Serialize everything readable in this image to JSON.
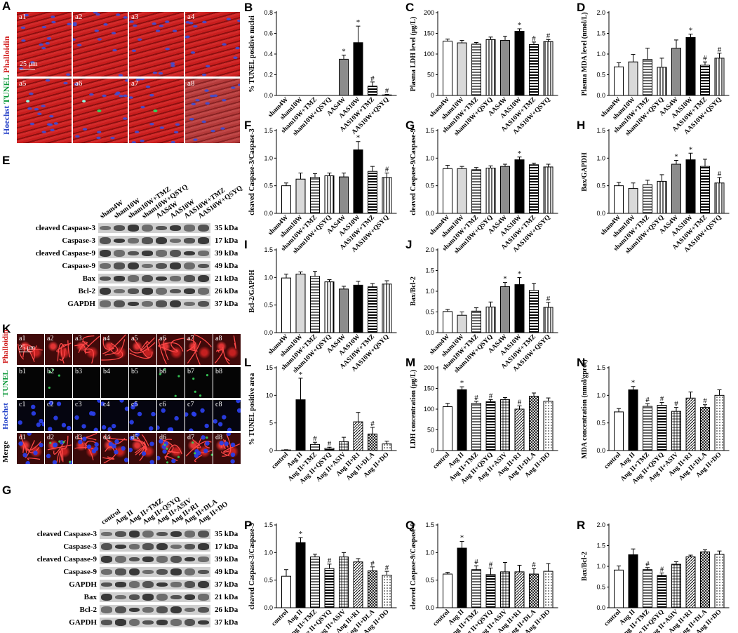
{
  "panel_letters": {
    "A": "A",
    "B": "B",
    "C": "C",
    "D": "D",
    "E": "E",
    "F": "F",
    "G": "G",
    "H": "H",
    "I": "I",
    "J": "J",
    "K": "K",
    "L": "L",
    "M": "M",
    "N": "N",
    "P": "P",
    "Q": "Q",
    "R": "R"
  },
  "micrograph_A": {
    "stain_left": {
      "hoechst": "Hoechst",
      "tunel": "TUNEL",
      "phalloidin": "Phalloidin"
    },
    "scale_bar": "25 μm",
    "tiles": [
      "a1",
      "a2",
      "a3",
      "a4",
      "a5",
      "a6",
      "a7",
      "a8"
    ]
  },
  "micrograph_K": {
    "scale_bar": "25 μm",
    "rows": [
      {
        "label": "TUNEL Phalloidin",
        "parts": [
          {
            "t": "Phalloidin",
            "c": "#d11d1d"
          }
        ],
        "tiles": [
          "a1",
          "a2",
          "a3",
          "a4",
          "a5",
          "a6",
          "a7",
          "a8"
        ]
      },
      {
        "label": "TUNEL",
        "parts": [
          {
            "t": "TUNEL",
            "c": "#0d9a3a"
          }
        ],
        "tiles": [
          "b1",
          "b2",
          "b3",
          "b4",
          "b5",
          "b6",
          "b7",
          "b8"
        ]
      },
      {
        "label": "Hoechst",
        "parts": [
          {
            "t": "Hoechst",
            "c": "#2040c8"
          }
        ],
        "tiles": [
          "c1",
          "c2",
          "c3",
          "c4",
          "c5",
          "c6",
          "c7",
          "c8"
        ]
      },
      {
        "label": "Merge",
        "parts": [
          {
            "t": "Merge",
            "c": "#000000"
          }
        ],
        "tiles": [
          "d1",
          "d2",
          "d3",
          "d4",
          "d5",
          "d6",
          "d7",
          "d8"
        ]
      }
    ]
  },
  "blot_E": {
    "lanes": [
      "sham4W",
      "sham10W",
      "sham10W+TMZ",
      "sham10W+QSYQ",
      "AAS4W",
      "AAS10W",
      "AAS10W+TMZ",
      "AAS10W+QSYQ"
    ],
    "rows": [
      {
        "name": "cleaved Caspase-3",
        "kda": "35 kDa"
      },
      {
        "name": "Caspase-3",
        "kda": "17 kDa"
      },
      {
        "name": "cleaved Caspase-9",
        "kda": "39 kDa"
      },
      {
        "name": "Caspase-9",
        "kda": "49 kDa"
      },
      {
        "name": "Bax",
        "kda": "21 kDa"
      },
      {
        "name": "Bcl-2",
        "kda": "26 kDa"
      },
      {
        "name": "GAPDH",
        "kda": "37 kDa"
      }
    ]
  },
  "blot_G": {
    "lanes": [
      "control",
      "Ang II",
      "Ang II+TMZ",
      "Ang II+QSYQ",
      "Ang II+ASIV",
      "Ang II+R1",
      "Ang II+DLA",
      "Ang II+DO"
    ],
    "rows": [
      {
        "name": "cleaved Caspase-3",
        "kda": "35 kDa"
      },
      {
        "name": "Caspase-3",
        "kda": "17 kDa"
      },
      {
        "name": "cleaved Caspase-9",
        "kda": "39 kDa"
      },
      {
        "name": "Caspase-9",
        "kda": "49 kDa"
      },
      {
        "name": "GAPDH",
        "kda": "37 kDa"
      },
      {
        "name": "Bax",
        "kda": "21 kDa"
      },
      {
        "name": "Bcl-2",
        "kda": "26 kDa"
      },
      {
        "name": "GAPDH",
        "kda": "37 kDa"
      }
    ]
  },
  "colors": {
    "black": "#000000",
    "dark_gray": "#7f7f7f",
    "light_gray": "#d9d9d9",
    "white": "#ffffff"
  },
  "chart_data": [
    {
      "id": "B",
      "type": "bar",
      "ylabel": "% TUNEL  positive nuclei",
      "ylim": [
        0,
        0.8
      ],
      "yticks": [
        0.0,
        0.2,
        0.4,
        0.6,
        0.8
      ],
      "categories": [
        "sham4W",
        "sham10W",
        "sham10W+TMZ",
        "sham10W+QSYQ",
        "AAS4W",
        "AAS10W",
        "AAS10W+TMZ",
        "AAS10W+QSYQ"
      ],
      "values": [
        0,
        0,
        0,
        0,
        0.35,
        0.51,
        0.09,
        0.005
      ],
      "errors": [
        0,
        0,
        0,
        0,
        0.04,
        0.16,
        0.04,
        0.005
      ],
      "marks": [
        "",
        "",
        "",
        "",
        "*",
        "*",
        "#",
        "#"
      ]
    },
    {
      "id": "C",
      "type": "bar",
      "ylabel": "Plasma LDH level (μg/L)",
      "ylim": [
        0,
        200
      ],
      "yticks": [
        0,
        50,
        100,
        150,
        200
      ],
      "categories": [
        "sham4W",
        "sham10W",
        "sham10W+TMZ",
        "sham10W+QSYQ",
        "AAS4W",
        "AAS10W",
        "AAS10W+TMZ",
        "AAS10W+QSYQ"
      ],
      "values": [
        131,
        127,
        124,
        135,
        133,
        155,
        123,
        130
      ],
      "errors": [
        5,
        6,
        4,
        6,
        10,
        6,
        6,
        5
      ],
      "marks": [
        "",
        "",
        "",
        "",
        "",
        "*",
        "#",
        "#"
      ]
    },
    {
      "id": "D",
      "type": "bar",
      "ylabel": "Plasma MDA level (nmol/L)",
      "ylim": [
        0,
        2.0
      ],
      "yticks": [
        0.0,
        0.5,
        1.0,
        1.5,
        2.0
      ],
      "categories": [
        "sham4W",
        "sham10W",
        "sham10W+TMZ",
        "sham10W+QSYQ",
        "AAS4W",
        "AAS10W",
        "AAS10W+TMZ",
        "AAS10W+QSYQ"
      ],
      "values": [
        0.69,
        0.81,
        0.87,
        0.68,
        1.14,
        1.4,
        0.73,
        0.9
      ],
      "errors": [
        0.1,
        0.18,
        0.27,
        0.22,
        0.2,
        0.08,
        0.08,
        0.12
      ],
      "marks": [
        "",
        "",
        "",
        "",
        "",
        "*",
        "#",
        "#"
      ]
    },
    {
      "id": "F",
      "type": "bar",
      "ylabel": "cleaved Caspase-3/Caspase-3",
      "ylim": [
        0,
        1.5
      ],
      "yticks": [
        0.0,
        0.5,
        1.0,
        1.5
      ],
      "categories": [
        "sham4W",
        "sham10W",
        "sham10W+TMZ",
        "sham10W+QSYQ",
        "AAS4W",
        "AAS10W",
        "AAS10W+TMZ",
        "AAS10W+QSYQ"
      ],
      "values": [
        0.5,
        0.62,
        0.65,
        0.68,
        0.66,
        1.15,
        0.76,
        0.65
      ],
      "errors": [
        0.05,
        0.11,
        0.07,
        0.05,
        0.07,
        0.15,
        0.09,
        0.08
      ],
      "marks": [
        "",
        "",
        "",
        "",
        "",
        "*",
        "",
        "#"
      ]
    },
    {
      "id": "G2",
      "type": "bar",
      "ylabel": "cleaved Caspase-9/Caspase-9",
      "ylim": [
        0,
        1.5
      ],
      "yticks": [
        0.0,
        0.5,
        1.0,
        1.5
      ],
      "categories": [
        "sham4W",
        "sham10W",
        "sham10W+TMZ",
        "sham10W+QSYQ",
        "AAS4W",
        "AAS10W",
        "AAS10W+TMZ",
        "AAS10W+QSYQ"
      ],
      "values": [
        0.81,
        0.81,
        0.79,
        0.82,
        0.85,
        0.97,
        0.88,
        0.84
      ],
      "errors": [
        0.06,
        0.04,
        0.04,
        0.04,
        0.04,
        0.05,
        0.03,
        0.05
      ],
      "marks": [
        "",
        "",
        "",
        "",
        "",
        "*",
        "",
        ""
      ]
    },
    {
      "id": "H",
      "type": "bar",
      "ylabel": "Bax/GAPDH",
      "ylim": [
        0,
        1.5
      ],
      "yticks": [
        0.0,
        0.5,
        1.0,
        1.5
      ],
      "categories": [
        "sham4W",
        "sham10W",
        "sham10W+TMZ",
        "sham10W+QSYQ",
        "AAS4W",
        "AAS10W",
        "AAS10W+TMZ",
        "AAS10W+QSYQ"
      ],
      "values": [
        0.5,
        0.45,
        0.52,
        0.58,
        0.89,
        0.97,
        0.85,
        0.55
      ],
      "errors": [
        0.06,
        0.1,
        0.08,
        0.12,
        0.07,
        0.12,
        0.13,
        0.1
      ],
      "marks": [
        "",
        "",
        "",
        "",
        "*",
        "*",
        "",
        "#"
      ]
    },
    {
      "id": "I",
      "type": "bar",
      "ylabel": "Bcl-2/GAPDH",
      "ylim": [
        0,
        1.5
      ],
      "yticks": [
        0.0,
        0.5,
        1.0,
        1.5
      ],
      "categories": [
        "sham4W",
        "sham10W",
        "sham10W+TMZ",
        "sham10W+QSYQ",
        "AAS4W",
        "AAS10W",
        "AAS10W+TMZ",
        "AAS10W+QSYQ"
      ],
      "values": [
        0.99,
        1.06,
        1.02,
        0.92,
        0.79,
        0.86,
        0.83,
        0.88
      ],
      "errors": [
        0.07,
        0.04,
        0.09,
        0.04,
        0.05,
        0.07,
        0.06,
        0.06
      ],
      "marks": [
        "",
        "",
        "",
        "",
        "",
        "",
        "",
        ""
      ]
    },
    {
      "id": "J",
      "type": "bar",
      "ylabel": "Bax/Bcl-2",
      "ylim": [
        0,
        2.0
      ],
      "yticks": [
        0.0,
        0.5,
        1.0,
        1.5,
        2.0
      ],
      "categories": [
        "sham4W",
        "sham10W",
        "sham10W+TMZ",
        "sham10W+QSYQ",
        "AAS4W",
        "AAS10W",
        "AAS10W+TMZ",
        "AAS10W+QSYQ"
      ],
      "values": [
        0.51,
        0.42,
        0.52,
        0.62,
        1.11,
        1.16,
        1.02,
        0.61
      ],
      "errors": [
        0.05,
        0.08,
        0.08,
        0.12,
        0.1,
        0.17,
        0.17,
        0.12
      ],
      "marks": [
        "",
        "",
        "",
        "",
        "*",
        "*",
        "",
        "#"
      ]
    },
    {
      "id": "L",
      "type": "bar",
      "ylabel": "% TUNEL  positive area",
      "ylim": [
        0,
        15
      ],
      "yticks": [
        0,
        5,
        10,
        15
      ],
      "categories": [
        "control",
        "Ang II",
        "Ang II+TMZ",
        "Ang II+QSYQ",
        "Ang II+ASIV",
        "Ang II+R1",
        "Ang II+DLA",
        "Ang II+DO"
      ],
      "values": [
        0.1,
        9.2,
        1.1,
        0.4,
        1.6,
        5.2,
        3.0,
        1.2
      ],
      "errors": [
        0.05,
        3.9,
        0.4,
        0.2,
        0.8,
        1.7,
        1.2,
        0.5
      ],
      "marks": [
        "",
        "*",
        "#",
        "#",
        "",
        "",
        "#",
        ""
      ]
    },
    {
      "id": "M",
      "type": "bar",
      "ylabel": "LDH concentration (μg/L)",
      "ylim": [
        0,
        200
      ],
      "yticks": [
        0,
        50,
        100,
        150,
        200
      ],
      "categories": [
        "control",
        "Ang II",
        "Ang II+TMZ",
        "Ang II+QSYQ",
        "Ang II+ASIV",
        "Ang II+R1",
        "Ang II+DLA",
        "Ang II+DO"
      ],
      "values": [
        106,
        147,
        114,
        118,
        123,
        100,
        131,
        119
      ],
      "errors": [
        8,
        7,
        5,
        5,
        5,
        8,
        8,
        8
      ],
      "marks": [
        "",
        "*",
        "#",
        "#",
        "",
        "#",
        "",
        ""
      ]
    },
    {
      "id": "N",
      "type": "bar",
      "ylabel": "MDA concentration (nmol/gprot)",
      "ylim": [
        0,
        1.5
      ],
      "yticks": [
        0.0,
        0.5,
        1.0,
        1.5
      ],
      "categories": [
        "control",
        "Ang II",
        "Ang II+TMZ",
        "Ang II+QSYQ",
        "Ang II+ASIV",
        "Ang II+R1",
        "Ang II+DLA",
        "Ang II+DO"
      ],
      "values": [
        0.7,
        1.1,
        0.8,
        0.82,
        0.71,
        0.95,
        0.78,
        1.0
      ],
      "errors": [
        0.06,
        0.06,
        0.05,
        0.05,
        0.07,
        0.11,
        0.05,
        0.1
      ],
      "marks": [
        "",
        "*",
        "#",
        "#",
        "#",
        "",
        "#",
        ""
      ]
    },
    {
      "id": "P",
      "type": "bar",
      "ylabel": "cleaved Caspase-3/Caspase-3",
      "ylim": [
        0,
        1.5
      ],
      "yticks": [
        0.0,
        0.5,
        1.0,
        1.5
      ],
      "categories": [
        "control",
        "Ang II",
        "Ang II+TMZ",
        "Ang II+QSYQ",
        "Ang II+ASIV",
        "Ang II+R1",
        "Ang II+DLA",
        "Ang II+DO"
      ],
      "values": [
        0.57,
        1.18,
        0.92,
        0.71,
        0.92,
        0.83,
        0.67,
        0.59
      ],
      "errors": [
        0.12,
        0.09,
        0.05,
        0.08,
        0.08,
        0.06,
        0.07,
        0.07
      ],
      "marks": [
        "",
        "*",
        "",
        "#",
        "",
        "",
        "#",
        "#"
      ]
    },
    {
      "id": "Q",
      "type": "bar",
      "ylabel": "cleaved Caspase-9/Caspase-9",
      "ylim": [
        0,
        1.5
      ],
      "yticks": [
        0.0,
        0.5,
        1.0,
        1.5
      ],
      "categories": [
        "control",
        "Ang II",
        "Ang II+TMZ",
        "Ang II+QSYQ",
        "Ang II+ASIV",
        "Ang II+R1",
        "Ang II+DLA",
        "Ang II+DO"
      ],
      "values": [
        0.61,
        1.08,
        0.69,
        0.6,
        0.65,
        0.65,
        0.61,
        0.66
      ],
      "errors": [
        0.03,
        0.12,
        0.07,
        0.12,
        0.17,
        0.12,
        0.1,
        0.14
      ],
      "marks": [
        "",
        "*",
        "#",
        "#",
        "",
        "",
        "#",
        ""
      ]
    },
    {
      "id": "R",
      "type": "bar",
      "ylabel": "Bax/Bcl-2",
      "ylim": [
        0,
        2.0
      ],
      "yticks": [
        0.0,
        0.5,
        1.0,
        1.5,
        2.0
      ],
      "categories": [
        "control",
        "Ang II",
        "Ang II+TMZ",
        "Ang II+QSYQ",
        "Ang II+ASIV",
        "Ang II+R1",
        "Ang II+DLA",
        "Ang II+DO"
      ],
      "values": [
        0.91,
        1.28,
        0.92,
        0.78,
        1.05,
        1.23,
        1.35,
        1.29
      ],
      "errors": [
        0.1,
        0.14,
        0.05,
        0.06,
        0.06,
        0.04,
        0.05,
        0.08
      ],
      "marks": [
        "",
        "",
        "#",
        "#",
        "",
        "",
        "",
        ""
      ]
    }
  ]
}
